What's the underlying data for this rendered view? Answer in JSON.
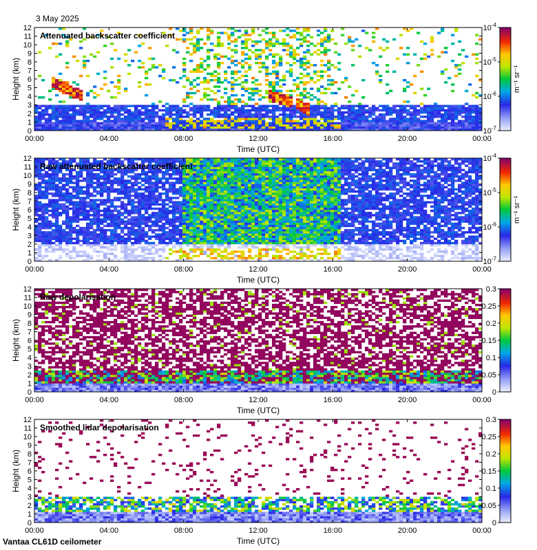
{
  "header": {
    "date": "3 May 2025"
  },
  "footer": {
    "instrument": "Vantaa CL61D ceilometer"
  },
  "chart_data": [
    {
      "type": "heatmap",
      "title": "Attenuated backscatter coefficient",
      "xlabel": "Time (UTC)",
      "ylabel": "Height (km)",
      "x_ticks": [
        "00:00",
        "04:00",
        "08:00",
        "12:00",
        "16:00",
        "20:00",
        "00:00"
      ],
      "y_ticks": [
        "0",
        "1",
        "2",
        "3",
        "4",
        "5",
        "6",
        "7",
        "8",
        "9",
        "10",
        "11",
        "12"
      ],
      "ylim": [
        0,
        12
      ],
      "colorbar": {
        "scale": "log",
        "range": [
          1e-07,
          0.0001
        ],
        "ticks": [
          "10^-7",
          "10^-6",
          "10^-5",
          "10^-4"
        ],
        "unit": "m⁻¹ sr⁻¹"
      },
      "features": {
        "cloud_layers": [
          {
            "start_hour": 1.0,
            "end_hour": 2.5,
            "height_km": [
              3.8,
              6.2
            ],
            "level": "high"
          },
          {
            "start_hour": 12.5,
            "end_hour": 13.8,
            "height_km": [
              3.5,
              4.8
            ],
            "level": "high"
          },
          {
            "start_hour": 14.0,
            "end_hour": 14.7,
            "height_km": [
              2.5,
              4.0
            ],
            "level": "high"
          }
        ],
        "boundary_layer_top_km": 3.0
      }
    },
    {
      "type": "heatmap",
      "title": "Raw attenuated backscatter coefficient",
      "xlabel": "Time (UTC)",
      "ylabel": "Height (km)",
      "x_ticks": [
        "00:00",
        "04:00",
        "08:00",
        "12:00",
        "16:00",
        "20:00",
        "00:00"
      ],
      "y_ticks": [
        "0",
        "1",
        "2",
        "3",
        "4",
        "5",
        "6",
        "7",
        "8",
        "9",
        "10",
        "11",
        "12"
      ],
      "ylim": [
        0,
        12
      ],
      "colorbar": {
        "scale": "log",
        "range": [
          1e-07,
          0.0001
        ],
        "ticks": [
          "10^-7",
          "10^-6",
          "10^-5",
          "10^-4"
        ],
        "unit": "m⁻¹ sr⁻¹"
      }
    },
    {
      "type": "heatmap",
      "title": "Raw depolarisation",
      "xlabel": "Time (UTC)",
      "ylabel": "Height (km)",
      "x_ticks": [
        "00:00",
        "04:00",
        "08:00",
        "12:00",
        "16:00",
        "20:00",
        "00:00"
      ],
      "y_ticks": [
        "0",
        "1",
        "2",
        "3",
        "4",
        "5",
        "6",
        "7",
        "8",
        "9",
        "10",
        "11",
        "12"
      ],
      "ylim": [
        0,
        12
      ],
      "colorbar": {
        "scale": "linear",
        "range": [
          0,
          0.3
        ],
        "ticks": [
          "0",
          "0.05",
          "0.1",
          "0.15",
          "0.2",
          "0.25",
          "0.3"
        ]
      }
    },
    {
      "type": "heatmap",
      "title": "Smoothed lidar depolarisation",
      "xlabel": "Time (UTC)",
      "ylabel": "Height (km)",
      "x_ticks": [
        "00:00",
        "04:00",
        "08:00",
        "12:00",
        "16:00",
        "20:00",
        "00:00"
      ],
      "y_ticks": [
        "0",
        "1",
        "2",
        "3",
        "4",
        "5",
        "6",
        "7",
        "8",
        "9",
        "10",
        "11",
        "12"
      ],
      "ylim": [
        0,
        12
      ],
      "colorbar": {
        "scale": "linear",
        "range": [
          0,
          0.3
        ],
        "ticks": [
          "0",
          "0.05",
          "0.1",
          "0.15",
          "0.2",
          "0.25",
          "0.3"
        ]
      }
    }
  ]
}
